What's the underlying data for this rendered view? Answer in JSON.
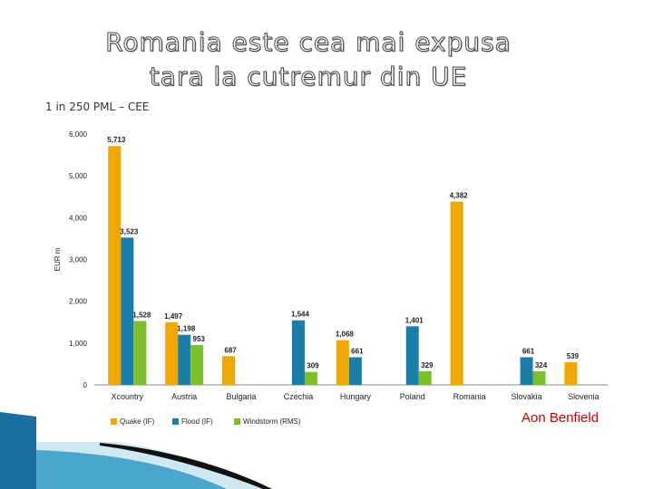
{
  "slide": {
    "title_line1": "Romania este cea mai expusa",
    "title_line2": "tara la cutremur din UE",
    "subtitle": "1 in 250 PML – CEE",
    "credit": "Aon Benfield"
  },
  "chart_data": {
    "type": "bar",
    "title": "",
    "xlabel": "",
    "ylabel": "EUR m",
    "ylim": [
      0,
      6000
    ],
    "yticks": [
      0,
      1000,
      2000,
      3000,
      4000,
      5000,
      6000
    ],
    "ytick_labels": [
      "0",
      "1,000",
      "2,000",
      "3,000",
      "4,000",
      "5,000",
      "6,000"
    ],
    "categories": [
      "Xcountry",
      "Austria",
      "Bulgaria",
      "Czechia",
      "Hungary",
      "Poland",
      "Romania",
      "Slovakia",
      "Slovenia"
    ],
    "series": [
      {
        "name": "Quake (IF)",
        "color": "#f0a800",
        "values": [
          5713,
          1497,
          687,
          null,
          1068,
          null,
          4382,
          null,
          539
        ],
        "labels": [
          "5,713",
          "1,497",
          "687",
          "",
          "1,068",
          "",
          "4,382",
          "",
          "539"
        ]
      },
      {
        "name": "Flood (IF)",
        "color": "#1a7fa8",
        "values": [
          3523,
          1198,
          null,
          1544,
          661,
          1401,
          null,
          661,
          null
        ],
        "labels": [
          "3,523",
          "1,198",
          "",
          "1,544",
          "661",
          "1,401",
          "",
          "661",
          ""
        ]
      },
      {
        "name": "Windstorm (RMS)",
        "color": "#7cbf2a",
        "values": [
          1528,
          953,
          null,
          309,
          null,
          329,
          null,
          324,
          null
        ],
        "labels": [
          "1,528",
          "953",
          "",
          "309",
          "",
          "329",
          "",
          "324",
          ""
        ]
      }
    ],
    "legend_position": "bottom"
  }
}
